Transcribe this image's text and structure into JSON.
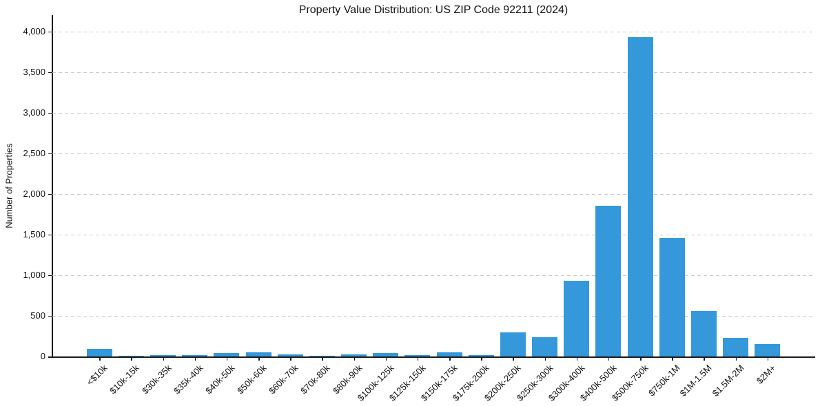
{
  "chart_data": {
    "type": "bar",
    "title": "Property Value Distribution: US ZIP Code 92211 (2024)",
    "xlabel": "",
    "ylabel": "Number of Properties",
    "categories": [
      "<$10k",
      "$10k-15k",
      "$30k-35k",
      "$35k-40k",
      "$40k-50k",
      "$50k-60k",
      "$60k-70k",
      "$70k-80k",
      "$80k-90k",
      "$100k-125k",
      "$125k-150k",
      "$150k-175k",
      "$175k-200k",
      "$200k-250k",
      "$250k-300k",
      "$300k-400k",
      "$400k-500k",
      "$500k-750k",
      "$750k-1M",
      "$1M-1.5M",
      "$1.5M-2M",
      "$2M+"
    ],
    "values": [
      95,
      12,
      15,
      14,
      40,
      48,
      25,
      10,
      22,
      45,
      20,
      52,
      15,
      295,
      240,
      935,
      1855,
      3930,
      1455,
      560,
      230,
      150
    ],
    "ylim": [
      0,
      4200
    ],
    "yticks": [
      0,
      500,
      1000,
      1500,
      2000,
      2500,
      3000,
      3500,
      4000
    ],
    "ytick_labels": [
      "0",
      "500",
      "1,000",
      "1,500",
      "2,000",
      "2,500",
      "3,000",
      "3,500",
      "4,000"
    ],
    "x_tick_rotation": 45,
    "bar_color": "#3498db",
    "grid": "horizontal-dashed",
    "grid_color": "#c9c9c9",
    "legend": "none"
  }
}
